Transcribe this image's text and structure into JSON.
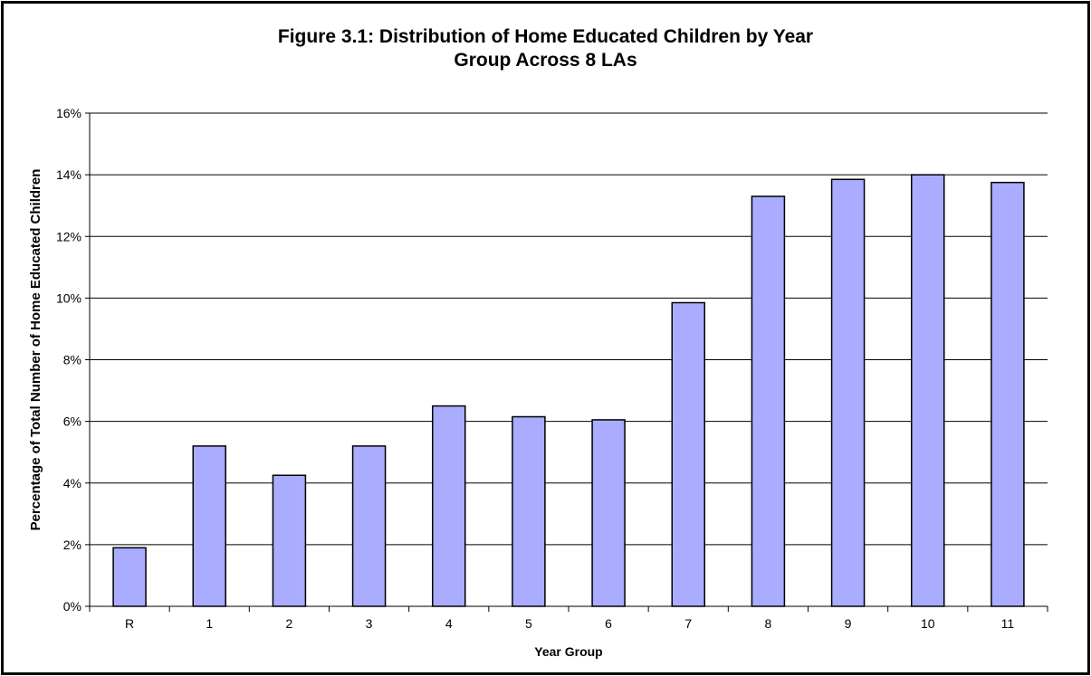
{
  "chart_data": {
    "type": "bar",
    "title": "Figure 3.1: Distribution of Home Educated Children by Year Group Across 8 LAs",
    "title_lines": [
      "Figure 3.1: Distribution of Home Educated Children by Year",
      "Group Across 8 LAs"
    ],
    "xlabel": "Year Group",
    "ylabel": "Percentage of Total Number of Home Educated Children",
    "categories": [
      "R",
      "1",
      "2",
      "3",
      "4",
      "5",
      "6",
      "7",
      "8",
      "9",
      "10",
      "11"
    ],
    "values": [
      1.9,
      5.2,
      4.25,
      5.2,
      6.5,
      6.15,
      6.05,
      9.85,
      13.3,
      13.85,
      14.0,
      13.75
    ],
    "ylim": [
      0,
      16
    ],
    "yticks": [
      0,
      2,
      4,
      6,
      8,
      10,
      12,
      14,
      16
    ],
    "ytick_labels": [
      "0%",
      "2%",
      "4%",
      "6%",
      "8%",
      "10%",
      "12%",
      "14%",
      "16%"
    ],
    "grid": true,
    "legend": "none",
    "bar_color": "#a9acff",
    "bar_edge_color": "#000000"
  }
}
